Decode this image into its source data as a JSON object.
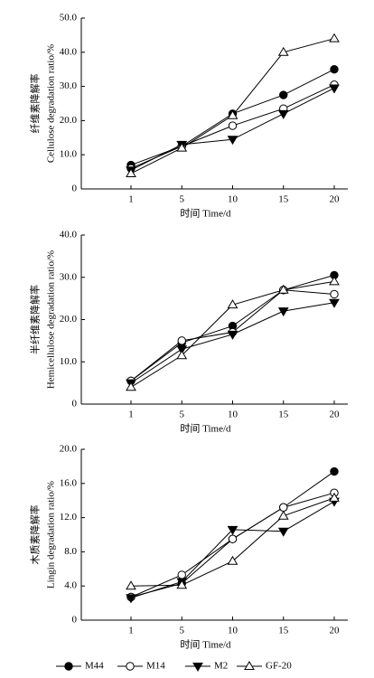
{
  "chart_data": [
    {
      "type": "line",
      "y_label_cn": "纤维素降解率",
      "y_label": "Cellulose degradation ratio/%",
      "x_label": "时间 Time/d",
      "categories": [
        "1",
        "5",
        "10",
        "15",
        "20"
      ],
      "ylim": [
        0,
        50
      ],
      "yticks": [
        0,
        {
          "value": 10,
          "label": "10.0"
        },
        {
          "value": 20,
          "label": "20.0"
        },
        {
          "value": 30,
          "label": "30.0"
        },
        {
          "value": 40,
          "label": "40.0"
        },
        {
          "value": 50,
          "label": "50.0"
        }
      ],
      "series": [
        {
          "name": "M44",
          "color": "#000000",
          "marker": "circle-filled",
          "values": [
            7,
            12.5,
            22,
            27.5,
            35
          ]
        },
        {
          "name": "M14",
          "color": "#000000",
          "marker": "circle-open",
          "values": [
            6,
            12.5,
            18.5,
            23.5,
            30.5
          ]
        },
        {
          "name": "M2",
          "color": "#000000",
          "marker": "triangle-down-filled",
          "values": [
            5.5,
            13,
            14.5,
            22,
            29.5
          ]
        },
        {
          "name": "GF-20",
          "color": "#000000",
          "marker": "triangle-up-open",
          "values": [
            4.5,
            12,
            21.5,
            40,
            44
          ]
        }
      ]
    },
    {
      "type": "line",
      "y_label_cn": "半纤维素降解率",
      "y_label": "Hemicellulose degradation ratio/%",
      "x_label": "时间 Time/d",
      "categories": [
        "1",
        "5",
        "10",
        "15",
        "20"
      ],
      "ylim": [
        0,
        40
      ],
      "yticks": [
        0,
        {
          "value": 10,
          "label": "10.0"
        },
        {
          "value": 20,
          "label": "20.0"
        },
        {
          "value": 30,
          "label": "30.0"
        },
        {
          "value": 40,
          "label": "40.0"
        }
      ],
      "series": [
        {
          "name": "M44",
          "color": "#000000",
          "marker": "circle-filled",
          "values": [
            5.5,
            14.5,
            18.5,
            27,
            30.5
          ]
        },
        {
          "name": "M14",
          "color": "#000000",
          "marker": "circle-open",
          "values": [
            5.5,
            15,
            17,
            27,
            26
          ]
        },
        {
          "name": "M2",
          "color": "#000000",
          "marker": "triangle-down-filled",
          "values": [
            5,
            13,
            16.5,
            22,
            24
          ]
        },
        {
          "name": "GF-20",
          "color": "#000000",
          "marker": "triangle-up-open",
          "values": [
            4,
            11.5,
            23.5,
            27,
            29
          ]
        }
      ]
    },
    {
      "type": "line",
      "y_label_cn": "木质素降解率",
      "y_label": "Lingin degradation ratio/%",
      "x_label": "时间 Time/d",
      "categories": [
        "1",
        "5",
        "10",
        "15",
        "20"
      ],
      "ylim": [
        0,
        20
      ],
      "yticks": [
        0,
        {
          "value": 4,
          "label": "4.0"
        },
        {
          "value": 8,
          "label": "8.0"
        },
        {
          "value": 12,
          "label": "12.0"
        },
        {
          "value": 16,
          "label": "16.0"
        },
        {
          "value": 20,
          "label": "20.0"
        }
      ],
      "series": [
        {
          "name": "M44",
          "color": "#000000",
          "marker": "circle-filled",
          "values": [
            2.7,
            4.3,
            9.5,
            13.2,
            17.4
          ]
        },
        {
          "name": "M14",
          "color": "#000000",
          "marker": "circle-open",
          "values": [
            2.7,
            5.3,
            9.5,
            13.2,
            14.9
          ]
        },
        {
          "name": "M2",
          "color": "#000000",
          "marker": "triangle-down-filled",
          "values": [
            2.6,
            4.5,
            10.6,
            10.4,
            13.9
          ]
        },
        {
          "name": "GF-20",
          "color": "#000000",
          "marker": "triangle-up-open",
          "values": [
            4.0,
            4.1,
            6.9,
            12.2,
            14.3
          ]
        }
      ]
    }
  ]
}
